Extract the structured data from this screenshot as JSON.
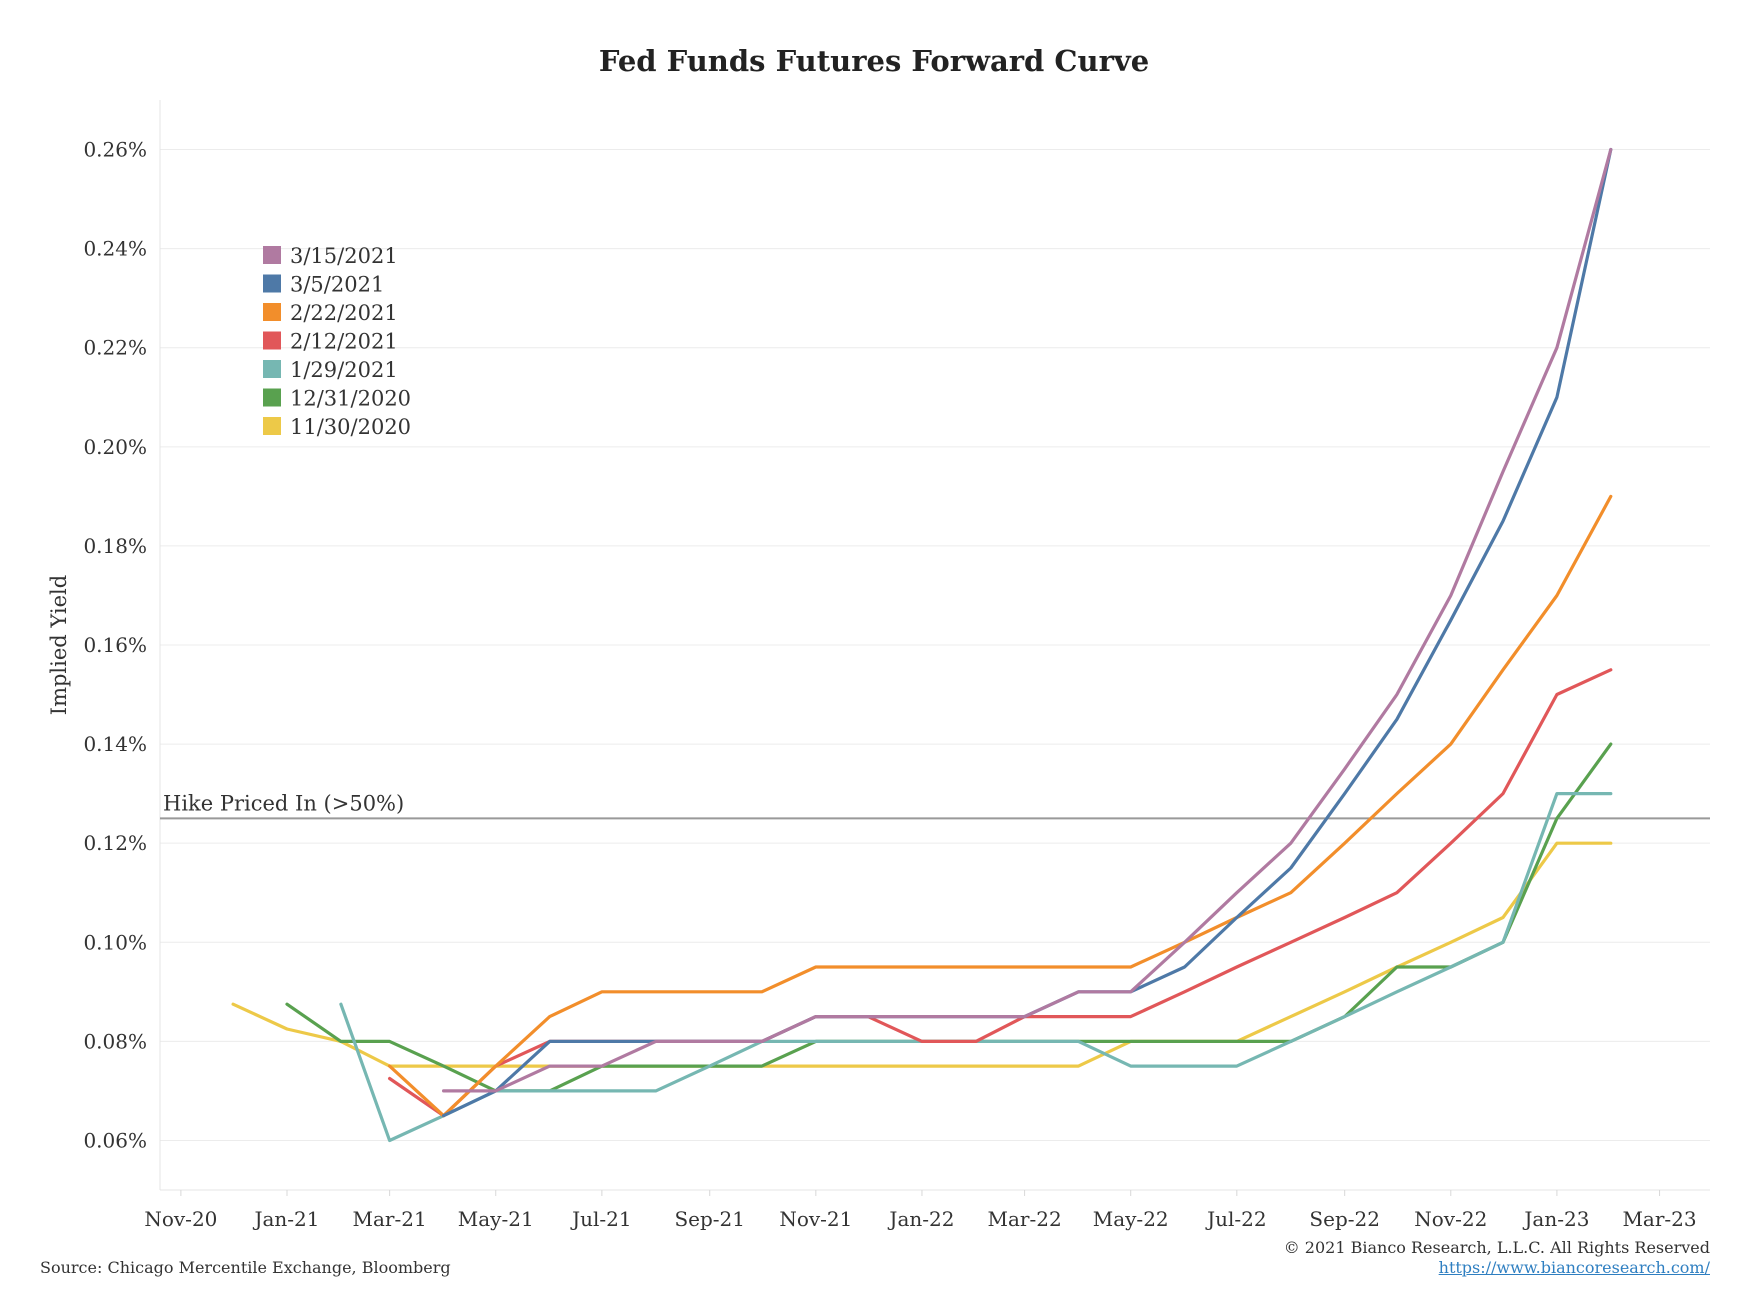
{
  "chart_data": {
    "type": "line",
    "title": "Fed Funds Futures Forward Curve",
    "ylabel": "Implied Yield",
    "xlabel": "",
    "ylim": [
      0.05,
      0.27
    ],
    "xlim": [
      "2020-10-20",
      "2023-03-30"
    ],
    "grid": true,
    "legend_position": "top-left",
    "y_ticks": [
      "0.06%",
      "0.08%",
      "0.10%",
      "0.12%",
      "0.14%",
      "0.16%",
      "0.18%",
      "0.20%",
      "0.22%",
      "0.24%",
      "0.26%"
    ],
    "x_ticks": [
      {
        "date": "2020-11-01",
        "label": "Nov-20"
      },
      {
        "date": "2021-01-01",
        "label": "Jan-21"
      },
      {
        "date": "2021-03-01",
        "label": "Mar-21"
      },
      {
        "date": "2021-05-01",
        "label": "May-21"
      },
      {
        "date": "2021-07-01",
        "label": "Jul-21"
      },
      {
        "date": "2021-09-01",
        "label": "Sep-21"
      },
      {
        "date": "2021-11-01",
        "label": "Nov-21"
      },
      {
        "date": "2022-01-01",
        "label": "Jan-22"
      },
      {
        "date": "2022-03-01",
        "label": "Mar-22"
      },
      {
        "date": "2022-05-01",
        "label": "May-22"
      },
      {
        "date": "2022-07-01",
        "label": "Jul-22"
      },
      {
        "date": "2022-09-01",
        "label": "Sep-22"
      },
      {
        "date": "2022-11-01",
        "label": "Nov-22"
      },
      {
        "date": "2023-01-01",
        "label": "Jan-23"
      },
      {
        "date": "2023-03-01",
        "label": "Mar-23"
      }
    ],
    "reference_line": {
      "label": "Hike Priced In (>50%)",
      "value": 0.125,
      "color": "#999999"
    },
    "series": [
      {
        "name": "11/30/2020",
        "color": "#EDC948",
        "points": [
          [
            "2020-12-01",
            0.0875
          ],
          [
            "2021-01-01",
            0.0825
          ],
          [
            "2021-02-01",
            0.08
          ],
          [
            "2021-03-01",
            0.075
          ],
          [
            "2021-04-01",
            0.075
          ],
          [
            "2021-05-01",
            0.075
          ],
          [
            "2021-06-01",
            0.075
          ],
          [
            "2021-07-01",
            0.075
          ],
          [
            "2021-08-01",
            0.075
          ],
          [
            "2021-09-01",
            0.075
          ],
          [
            "2021-10-01",
            0.075
          ],
          [
            "2021-11-01",
            0.075
          ],
          [
            "2021-12-01",
            0.075
          ],
          [
            "2022-01-01",
            0.075
          ],
          [
            "2022-02-01",
            0.075
          ],
          [
            "2022-03-01",
            0.075
          ],
          [
            "2022-04-01",
            0.075
          ],
          [
            "2022-05-01",
            0.08
          ],
          [
            "2022-06-01",
            0.08
          ],
          [
            "2022-07-01",
            0.08
          ],
          [
            "2022-08-01",
            0.085
          ],
          [
            "2022-09-01",
            0.09
          ],
          [
            "2022-10-01",
            0.095
          ],
          [
            "2022-11-01",
            0.1
          ],
          [
            "2022-12-01",
            0.105
          ],
          [
            "2023-01-01",
            0.12
          ],
          [
            "2023-02-01",
            0.12
          ]
        ]
      },
      {
        "name": "12/31/2020",
        "color": "#59A14F",
        "points": [
          [
            "2021-01-01",
            0.0875
          ],
          [
            "2021-02-01",
            0.08
          ],
          [
            "2021-03-01",
            0.08
          ],
          [
            "2021-04-01",
            0.075
          ],
          [
            "2021-05-01",
            0.07
          ],
          [
            "2021-06-01",
            0.07
          ],
          [
            "2021-07-01",
            0.075
          ],
          [
            "2021-08-01",
            0.075
          ],
          [
            "2021-09-01",
            0.075
          ],
          [
            "2021-10-01",
            0.075
          ],
          [
            "2021-11-01",
            0.08
          ],
          [
            "2021-12-01",
            0.08
          ],
          [
            "2022-01-01",
            0.08
          ],
          [
            "2022-02-01",
            0.08
          ],
          [
            "2022-03-01",
            0.08
          ],
          [
            "2022-04-01",
            0.08
          ],
          [
            "2022-05-01",
            0.08
          ],
          [
            "2022-06-01",
            0.08
          ],
          [
            "2022-07-01",
            0.08
          ],
          [
            "2022-08-01",
            0.08
          ],
          [
            "2022-09-01",
            0.085
          ],
          [
            "2022-10-01",
            0.095
          ],
          [
            "2022-11-01",
            0.095
          ],
          [
            "2022-12-01",
            0.1
          ],
          [
            "2023-01-01",
            0.125
          ],
          [
            "2023-02-01",
            0.14
          ]
        ]
      },
      {
        "name": "1/29/2021",
        "color": "#76B7B2",
        "points": [
          [
            "2021-02-01",
            0.0875
          ],
          [
            "2021-03-01",
            0.06
          ],
          [
            "2021-04-01",
            0.065
          ],
          [
            "2021-05-01",
            0.07
          ],
          [
            "2021-06-01",
            0.07
          ],
          [
            "2021-07-01",
            0.07
          ],
          [
            "2021-08-01",
            0.07
          ],
          [
            "2021-09-01",
            0.075
          ],
          [
            "2021-10-01",
            0.08
          ],
          [
            "2021-11-01",
            0.08
          ],
          [
            "2021-12-01",
            0.08
          ],
          [
            "2022-01-01",
            0.08
          ],
          [
            "2022-02-01",
            0.08
          ],
          [
            "2022-03-01",
            0.08
          ],
          [
            "2022-04-01",
            0.08
          ],
          [
            "2022-05-01",
            0.075
          ],
          [
            "2022-06-01",
            0.075
          ],
          [
            "2022-07-01",
            0.075
          ],
          [
            "2022-08-01",
            0.08
          ],
          [
            "2022-09-01",
            0.085
          ],
          [
            "2022-10-01",
            0.09
          ],
          [
            "2022-11-01",
            0.095
          ],
          [
            "2022-12-01",
            0.1
          ],
          [
            "2023-01-01",
            0.13
          ],
          [
            "2023-02-01",
            0.13
          ]
        ]
      },
      {
        "name": "2/12/2021",
        "color": "#E15759",
        "points": [
          [
            "2021-03-01",
            0.0725
          ],
          [
            "2021-04-01",
            0.065
          ],
          [
            "2021-05-01",
            0.075
          ],
          [
            "2021-06-01",
            0.08
          ],
          [
            "2021-07-01",
            0.08
          ],
          [
            "2021-08-01",
            0.08
          ],
          [
            "2021-09-01",
            0.08
          ],
          [
            "2021-10-01",
            0.08
          ],
          [
            "2021-11-01",
            0.085
          ],
          [
            "2021-12-01",
            0.085
          ],
          [
            "2022-01-01",
            0.08
          ],
          [
            "2022-02-01",
            0.08
          ],
          [
            "2022-03-01",
            0.085
          ],
          [
            "2022-04-01",
            0.085
          ],
          [
            "2022-05-01",
            0.085
          ],
          [
            "2022-06-01",
            0.09
          ],
          [
            "2022-07-01",
            0.095
          ],
          [
            "2022-08-01",
            0.1
          ],
          [
            "2022-09-01",
            0.105
          ],
          [
            "2022-10-01",
            0.11
          ],
          [
            "2022-11-01",
            0.12
          ],
          [
            "2022-12-01",
            0.13
          ],
          [
            "2023-01-01",
            0.15
          ],
          [
            "2023-02-01",
            0.155
          ]
        ]
      },
      {
        "name": "2/22/2021",
        "color": "#F28E2B",
        "points": [
          [
            "2021-03-01",
            0.075
          ],
          [
            "2021-04-01",
            0.065
          ],
          [
            "2021-05-01",
            0.075
          ],
          [
            "2021-06-01",
            0.085
          ],
          [
            "2021-07-01",
            0.09
          ],
          [
            "2021-08-01",
            0.09
          ],
          [
            "2021-09-01",
            0.09
          ],
          [
            "2021-10-01",
            0.09
          ],
          [
            "2021-11-01",
            0.095
          ],
          [
            "2021-12-01",
            0.095
          ],
          [
            "2022-01-01",
            0.095
          ],
          [
            "2022-02-01",
            0.095
          ],
          [
            "2022-03-01",
            0.095
          ],
          [
            "2022-04-01",
            0.095
          ],
          [
            "2022-05-01",
            0.095
          ],
          [
            "2022-06-01",
            0.1
          ],
          [
            "2022-07-01",
            0.105
          ],
          [
            "2022-08-01",
            0.11
          ],
          [
            "2022-09-01",
            0.12
          ],
          [
            "2022-10-01",
            0.13
          ],
          [
            "2022-11-01",
            0.14
          ],
          [
            "2022-12-01",
            0.155
          ],
          [
            "2023-01-01",
            0.17
          ],
          [
            "2023-02-01",
            0.19
          ]
        ]
      },
      {
        "name": "3/5/2021",
        "color": "#4E79A7",
        "points": [
          [
            "2021-04-01",
            0.065
          ],
          [
            "2021-05-01",
            0.07
          ],
          [
            "2021-06-01",
            0.08
          ],
          [
            "2021-07-01",
            0.08
          ],
          [
            "2021-08-01",
            0.08
          ],
          [
            "2021-09-01",
            0.08
          ],
          [
            "2021-10-01",
            0.08
          ],
          [
            "2021-11-01",
            0.085
          ],
          [
            "2021-12-01",
            0.085
          ],
          [
            "2022-01-01",
            0.085
          ],
          [
            "2022-02-01",
            0.085
          ],
          [
            "2022-03-01",
            0.085
          ],
          [
            "2022-04-01",
            0.09
          ],
          [
            "2022-05-01",
            0.09
          ],
          [
            "2022-06-01",
            0.095
          ],
          [
            "2022-07-01",
            0.105
          ],
          [
            "2022-08-01",
            0.115
          ],
          [
            "2022-09-01",
            0.13
          ],
          [
            "2022-10-01",
            0.145
          ],
          [
            "2022-11-01",
            0.165
          ],
          [
            "2022-12-01",
            0.185
          ],
          [
            "2023-01-01",
            0.21
          ],
          [
            "2023-02-01",
            0.26
          ]
        ]
      },
      {
        "name": "3/15/2021",
        "color": "#B07AA1",
        "points": [
          [
            "2021-04-01",
            0.07
          ],
          [
            "2021-05-01",
            0.07
          ],
          [
            "2021-06-01",
            0.075
          ],
          [
            "2021-07-01",
            0.075
          ],
          [
            "2021-08-01",
            0.08
          ],
          [
            "2021-09-01",
            0.08
          ],
          [
            "2021-10-01",
            0.08
          ],
          [
            "2021-11-01",
            0.085
          ],
          [
            "2021-12-01",
            0.085
          ],
          [
            "2022-01-01",
            0.085
          ],
          [
            "2022-02-01",
            0.085
          ],
          [
            "2022-03-01",
            0.085
          ],
          [
            "2022-04-01",
            0.09
          ],
          [
            "2022-05-01",
            0.09
          ],
          [
            "2022-06-01",
            0.1
          ],
          [
            "2022-07-01",
            0.11
          ],
          [
            "2022-08-01",
            0.12
          ],
          [
            "2022-09-01",
            0.135
          ],
          [
            "2022-10-01",
            0.15
          ],
          [
            "2022-11-01",
            0.17
          ],
          [
            "2022-12-01",
            0.195
          ],
          [
            "2023-01-01",
            0.22
          ],
          [
            "2023-02-01",
            0.26
          ]
        ]
      }
    ],
    "legend_order": [
      "3/15/2021",
      "3/5/2021",
      "2/22/2021",
      "2/12/2021",
      "1/29/2021",
      "12/31/2020",
      "11/30/2020"
    ]
  },
  "footer": {
    "source": "Source: Chicago Mercentile Exchange, Bloomberg",
    "copyright": "© 2021 Bianco Research, L.L.C. All Rights Reserved",
    "url": "https://www.biancoresearch.com/"
  }
}
